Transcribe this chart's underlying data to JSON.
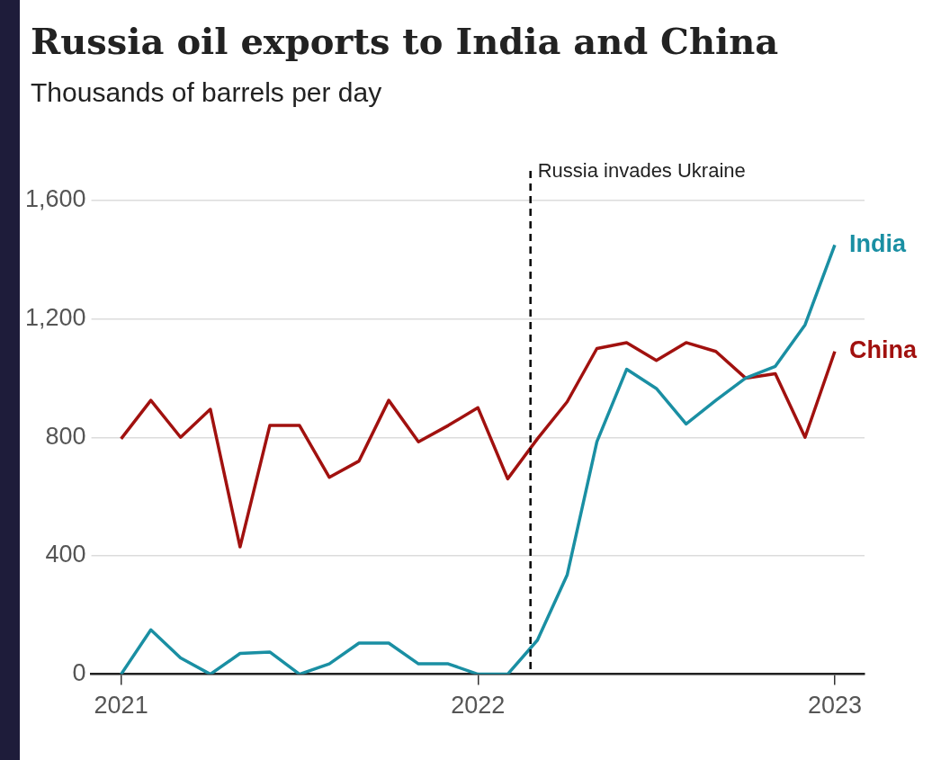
{
  "chart_data": {
    "type": "line",
    "title": "Russia oil exports to India and China",
    "subtitle": "Thousands of barrels per day",
    "x": [
      "2021-01",
      "2021-02",
      "2021-03",
      "2021-04",
      "2021-05",
      "2021-06",
      "2021-07",
      "2021-08",
      "2021-09",
      "2021-10",
      "2021-11",
      "2021-12",
      "2022-01",
      "2022-02",
      "2022-03",
      "2022-04",
      "2022-05",
      "2022-06",
      "2022-07",
      "2022-08",
      "2022-09",
      "2022-10",
      "2022-11",
      "2022-12",
      "2023-01"
    ],
    "series": [
      {
        "name": "India",
        "color": "#1a8fa3",
        "values": [
          0,
          150,
          55,
          0,
          70,
          75,
          0,
          35,
          105,
          105,
          35,
          35,
          0,
          0,
          115,
          335,
          785,
          1030,
          965,
          845,
          925,
          1000,
          1040,
          1180,
          1450
        ]
      },
      {
        "name": "China",
        "color": "#a1110f",
        "values": [
          795,
          925,
          800,
          895,
          430,
          840,
          840,
          665,
          720,
          925,
          785,
          840,
          900,
          660,
          795,
          920,
          1100,
          1120,
          1060,
          1120,
          1090,
          1000,
          1015,
          800,
          1090
        ]
      }
    ],
    "xlim": [
      "2020-12",
      "2023-02"
    ],
    "xticks": [
      "2021",
      "2022",
      "2023"
    ],
    "ylim": [
      0,
      1700
    ],
    "yticks": [
      0,
      {
        "value": 400,
        "label": "400"
      },
      {
        "value": 800,
        "label": "800"
      },
      {
        "value": 1200,
        "label": "1,200"
      },
      {
        "value": 1600,
        "label": "1,600"
      }
    ],
    "grid": "y",
    "legend": false,
    "line_style": "solid",
    "marker": "none",
    "ref_lines": [
      {
        "axis": "x",
        "value": "2022-02-24",
        "label": "Russia invades Ukraine",
        "color": "#000000",
        "line_style": "dashed"
      }
    ]
  }
}
